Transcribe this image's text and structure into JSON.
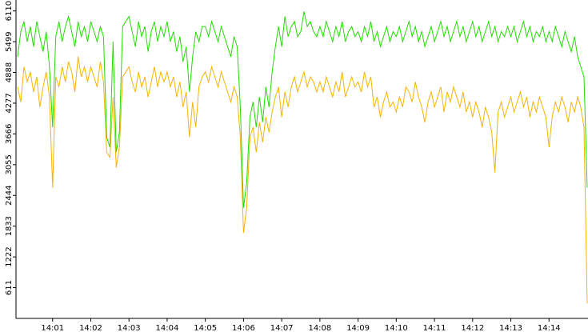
{
  "chart_data": {
    "type": "line",
    "categories": [
      null,
      null,
      null,
      null,
      null,
      null,
      null,
      null,
      null,
      null,
      null,
      "14:01",
      null,
      null,
      null,
      null,
      null,
      null,
      null,
      null,
      null,
      null,
      null,
      "14:02",
      null,
      null,
      null,
      null,
      null,
      null,
      null,
      null,
      null,
      null,
      null,
      "14:03",
      null,
      null,
      null,
      null,
      null,
      null,
      null,
      null,
      null,
      null,
      null,
      "14:04",
      null,
      null,
      null,
      null,
      null,
      null,
      null,
      null,
      null,
      null,
      null,
      "14:05",
      null,
      null,
      null,
      null,
      null,
      null,
      null,
      null,
      null,
      null,
      null,
      "14:06",
      null,
      null,
      null,
      null,
      null,
      null,
      null,
      null,
      null,
      null,
      null,
      "14:07",
      null,
      null,
      null,
      null,
      null,
      null,
      null,
      null,
      null,
      null,
      null,
      "14:08",
      null,
      null,
      null,
      null,
      null,
      null,
      null,
      null,
      null,
      null,
      null,
      "14:09",
      null,
      null,
      null,
      null,
      null,
      null,
      null,
      null,
      null,
      null,
      null,
      "14:10",
      null,
      null,
      null,
      null,
      null,
      null,
      null,
      null,
      null,
      null,
      null,
      "14:11",
      null,
      null,
      null,
      null,
      null,
      null,
      null,
      null,
      null,
      null,
      null,
      "14:12",
      null,
      null,
      null,
      null,
      null,
      null,
      null,
      null,
      null,
      null,
      null,
      "14:13",
      null,
      null,
      null,
      null,
      null,
      null,
      null,
      null,
      null,
      null,
      null,
      "14:14",
      null,
      null,
      null,
      null,
      null,
      null,
      null,
      null,
      null,
      null,
      null,
      null
    ],
    "series": [
      {
        "color": "#f5b400",
        "values": [
          4600,
          4300,
          5000,
          4700,
          4900,
          4500,
          4800,
          4200,
          4600,
          4900,
          4400,
          2600,
          4800,
          4600,
          5000,
          4700,
          5100,
          4900,
          4500,
          5200,
          4800,
          5000,
          4700,
          5000,
          4800,
          4600,
          5100,
          4700,
          3300,
          3200,
          4400,
          3000,
          3400,
          4800,
          4900,
          5000,
          4700,
          4500,
          4900,
          4600,
          4800,
          4400,
          4700,
          5000,
          4600,
          4900,
          4700,
          4900,
          4600,
          4800,
          4400,
          4700,
          4200,
          4500,
          3600,
          4300,
          3800,
          4600,
          4800,
          4900,
          4700,
          5000,
          4800,
          4600,
          4900,
          4700,
          4500,
          4300,
          4600,
          4400,
          3600,
          1700,
          2200,
          3600,
          3800,
          3300,
          3900,
          3500,
          4000,
          3700,
          4100,
          4400,
          4600,
          4000,
          4500,
          4200,
          4600,
          4800,
          4500,
          4700,
          4900,
          4600,
          4800,
          4700,
          4500,
          4700,
          4500,
          4800,
          4600,
          4400,
          4700,
          4500,
          4900,
          4400,
          4600,
          4800,
          4600,
          4700,
          4500,
          4900,
          4600,
          4800,
          4200,
          4400,
          4000,
          4300,
          4500,
          4200,
          4300,
          4100,
          4400,
          4200,
          4600,
          4500,
          4300,
          4700,
          4400,
          4200,
          3900,
          4300,
          4500,
          4200,
          4400,
          4600,
          4100,
          4500,
          4300,
          4600,
          4400,
          4200,
          4500,
          4100,
          4300,
          4000,
          4300,
          4100,
          3800,
          4200,
          4000,
          3700,
          2900,
          4100,
          4300,
          4000,
          4200,
          4400,
          4100,
          4300,
          4500,
          4200,
          4400,
          4000,
          4300,
          4100,
          4400,
          4200,
          4000,
          3400,
          4000,
          4300,
          4100,
          4400,
          4200,
          3900,
          4300,
          4100,
          4400,
          4200,
          3800,
          300
        ]
      },
      {
        "color": "#22dd00",
        "values": [
          5200,
          5700,
          5900,
          5500,
          5800,
          5400,
          5900,
          5600,
          5300,
          5700,
          5000,
          3800,
          5600,
          5900,
          5500,
          5800,
          6000,
          5700,
          5400,
          5900,
          5600,
          5800,
          5500,
          5900,
          5700,
          5500,
          5800,
          5600,
          3600,
          3400,
          5500,
          3300,
          3700,
          5800,
          5900,
          6000,
          5700,
          5400,
          5900,
          5600,
          5800,
          5300,
          5700,
          5900,
          5500,
          5800,
          5600,
          5900,
          5500,
          5700,
          5300,
          5600,
          5100,
          5400,
          4500,
          5200,
          5700,
          5500,
          5800,
          5800,
          5600,
          5900,
          5700,
          5500,
          5800,
          5600,
          5400,
          5200,
          5600,
          5400,
          4200,
          2200,
          2700,
          4000,
          4300,
          3800,
          4400,
          3900,
          4600,
          4200,
          4900,
          5400,
          5800,
          5400,
          6000,
          5600,
          5800,
          5900,
          5600,
          5700,
          6100,
          5800,
          5900,
          5700,
          5600,
          5800,
          5600,
          5900,
          5700,
          5500,
          5800,
          5600,
          5900,
          5500,
          5700,
          5800,
          5600,
          5700,
          5500,
          5800,
          5600,
          5900,
          5500,
          5700,
          5400,
          5600,
          5800,
          5500,
          5700,
          5600,
          5800,
          5500,
          5700,
          5900,
          5600,
          5800,
          5500,
          5700,
          5400,
          5600,
          5800,
          5500,
          5700,
          5900,
          5600,
          5800,
          5500,
          5700,
          5900,
          5600,
          5800,
          5500,
          5700,
          5900,
          5600,
          5800,
          5500,
          5700,
          5900,
          5600,
          5800,
          5500,
          5700,
          5600,
          5800,
          5600,
          5800,
          5500,
          5700,
          5900,
          5600,
          5800,
          5500,
          5700,
          5600,
          5800,
          5500,
          5700,
          5500,
          5800,
          5600,
          5400,
          5700,
          5500,
          5300,
          5600,
          5200,
          5000,
          4800,
          2600
        ]
      }
    ],
    "ylim": [
      0,
      6200
    ],
    "yticks": [
      611,
      1222,
      1833,
      2444,
      3055,
      3666,
      4277,
      4888,
      5499,
      6110
    ]
  }
}
